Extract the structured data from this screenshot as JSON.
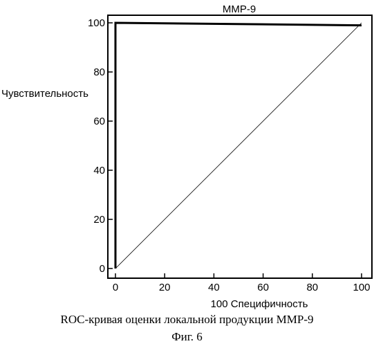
{
  "chart_data": {
    "type": "line",
    "title": "MMP-9",
    "xlabel": "100  Специфичность",
    "ylabel": "Чувствительность",
    "xlim": [
      0,
      100
    ],
    "ylim": [
      0,
      100
    ],
    "x_ticks": [
      "0",
      "20",
      "40",
      "60",
      "80",
      "100"
    ],
    "y_ticks": [
      "0",
      "20",
      "40",
      "60",
      "80",
      "100"
    ],
    "grid": false,
    "series": [
      {
        "role": "roc-curve",
        "x": [
          0,
          0,
          100
        ],
        "y": [
          0,
          100,
          99
        ],
        "color": "#000000"
      },
      {
        "role": "reference-diagonal",
        "x": [
          0,
          100
        ],
        "y": [
          0,
          100
        ],
        "color": "#000000"
      }
    ]
  },
  "caption": {
    "main": "ROC-кривая оценки локальной продукции MMP-9",
    "figure": "Фиг. 6"
  }
}
